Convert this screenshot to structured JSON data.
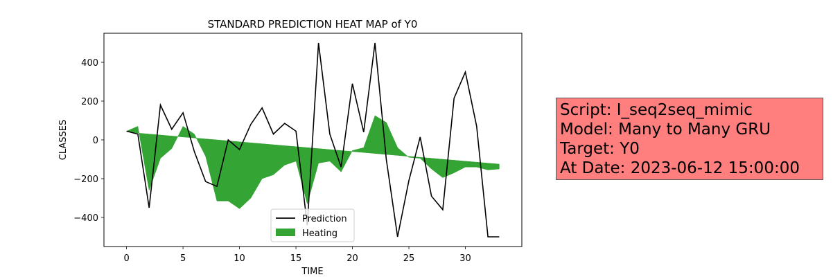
{
  "chart_data": {
    "type": "line",
    "title": "STANDARD PREDICTION HEAT MAP of Y0",
    "xlabel": "TIME",
    "ylabel": "CLASSES",
    "xlim": [
      -2,
      35
    ],
    "ylim": [
      -550,
      550
    ],
    "xticks": [
      0,
      5,
      10,
      15,
      20,
      25,
      30
    ],
    "yticks": [
      -400,
      -200,
      0,
      200,
      400
    ],
    "grid": false,
    "legend_position": "bottom-center",
    "x": [
      0,
      1,
      2,
      3,
      4,
      5,
      6,
      7,
      8,
      9,
      10,
      11,
      12,
      13,
      14,
      15,
      16,
      17,
      18,
      19,
      20,
      21,
      22,
      23,
      24,
      25,
      26,
      27,
      28,
      29,
      30,
      31,
      32,
      33
    ],
    "series": [
      {
        "name": "Prediction",
        "kind": "line",
        "color": "#000000",
        "values": [
          45,
          30,
          -350,
          180,
          55,
          140,
          -60,
          -215,
          -240,
          0,
          -50,
          80,
          165,
          30,
          85,
          45,
          -440,
          500,
          30,
          -140,
          290,
          40,
          500,
          -100,
          -500,
          -210,
          15,
          -290,
          -360,
          215,
          350,
          70,
          -500,
          -500
        ]
      },
      {
        "name": "Heating",
        "kind": "fill_between",
        "color": "#2ca02c",
        "lower": [
          45,
          35,
          30,
          25,
          20,
          15,
          10,
          5,
          0,
          -5,
          -10,
          -15,
          -20,
          -25,
          -30,
          -35,
          -40,
          -45,
          -50,
          -55,
          -60,
          -65,
          -70,
          -75,
          -80,
          -85,
          -90,
          -95,
          -100,
          -105,
          -110,
          -115,
          -120,
          -125
        ],
        "values": [
          45,
          70,
          -260,
          -95,
          -45,
          70,
          30,
          -85,
          -315,
          -315,
          -355,
          -300,
          -200,
          -180,
          -130,
          -110,
          -330,
          -120,
          -110,
          -165,
          -55,
          -40,
          125,
          90,
          -40,
          -90,
          -95,
          -150,
          -195,
          -170,
          -140,
          -140,
          -155,
          -150
        ]
      }
    ]
  },
  "info_box": {
    "lines": [
      "Script: I_seq2seq_mimic",
      "Model: Many to Many GRU",
      "Target: Y0",
      "At Date: 2023-06-12 15:00:00"
    ],
    "background": "#ff7f7f"
  }
}
